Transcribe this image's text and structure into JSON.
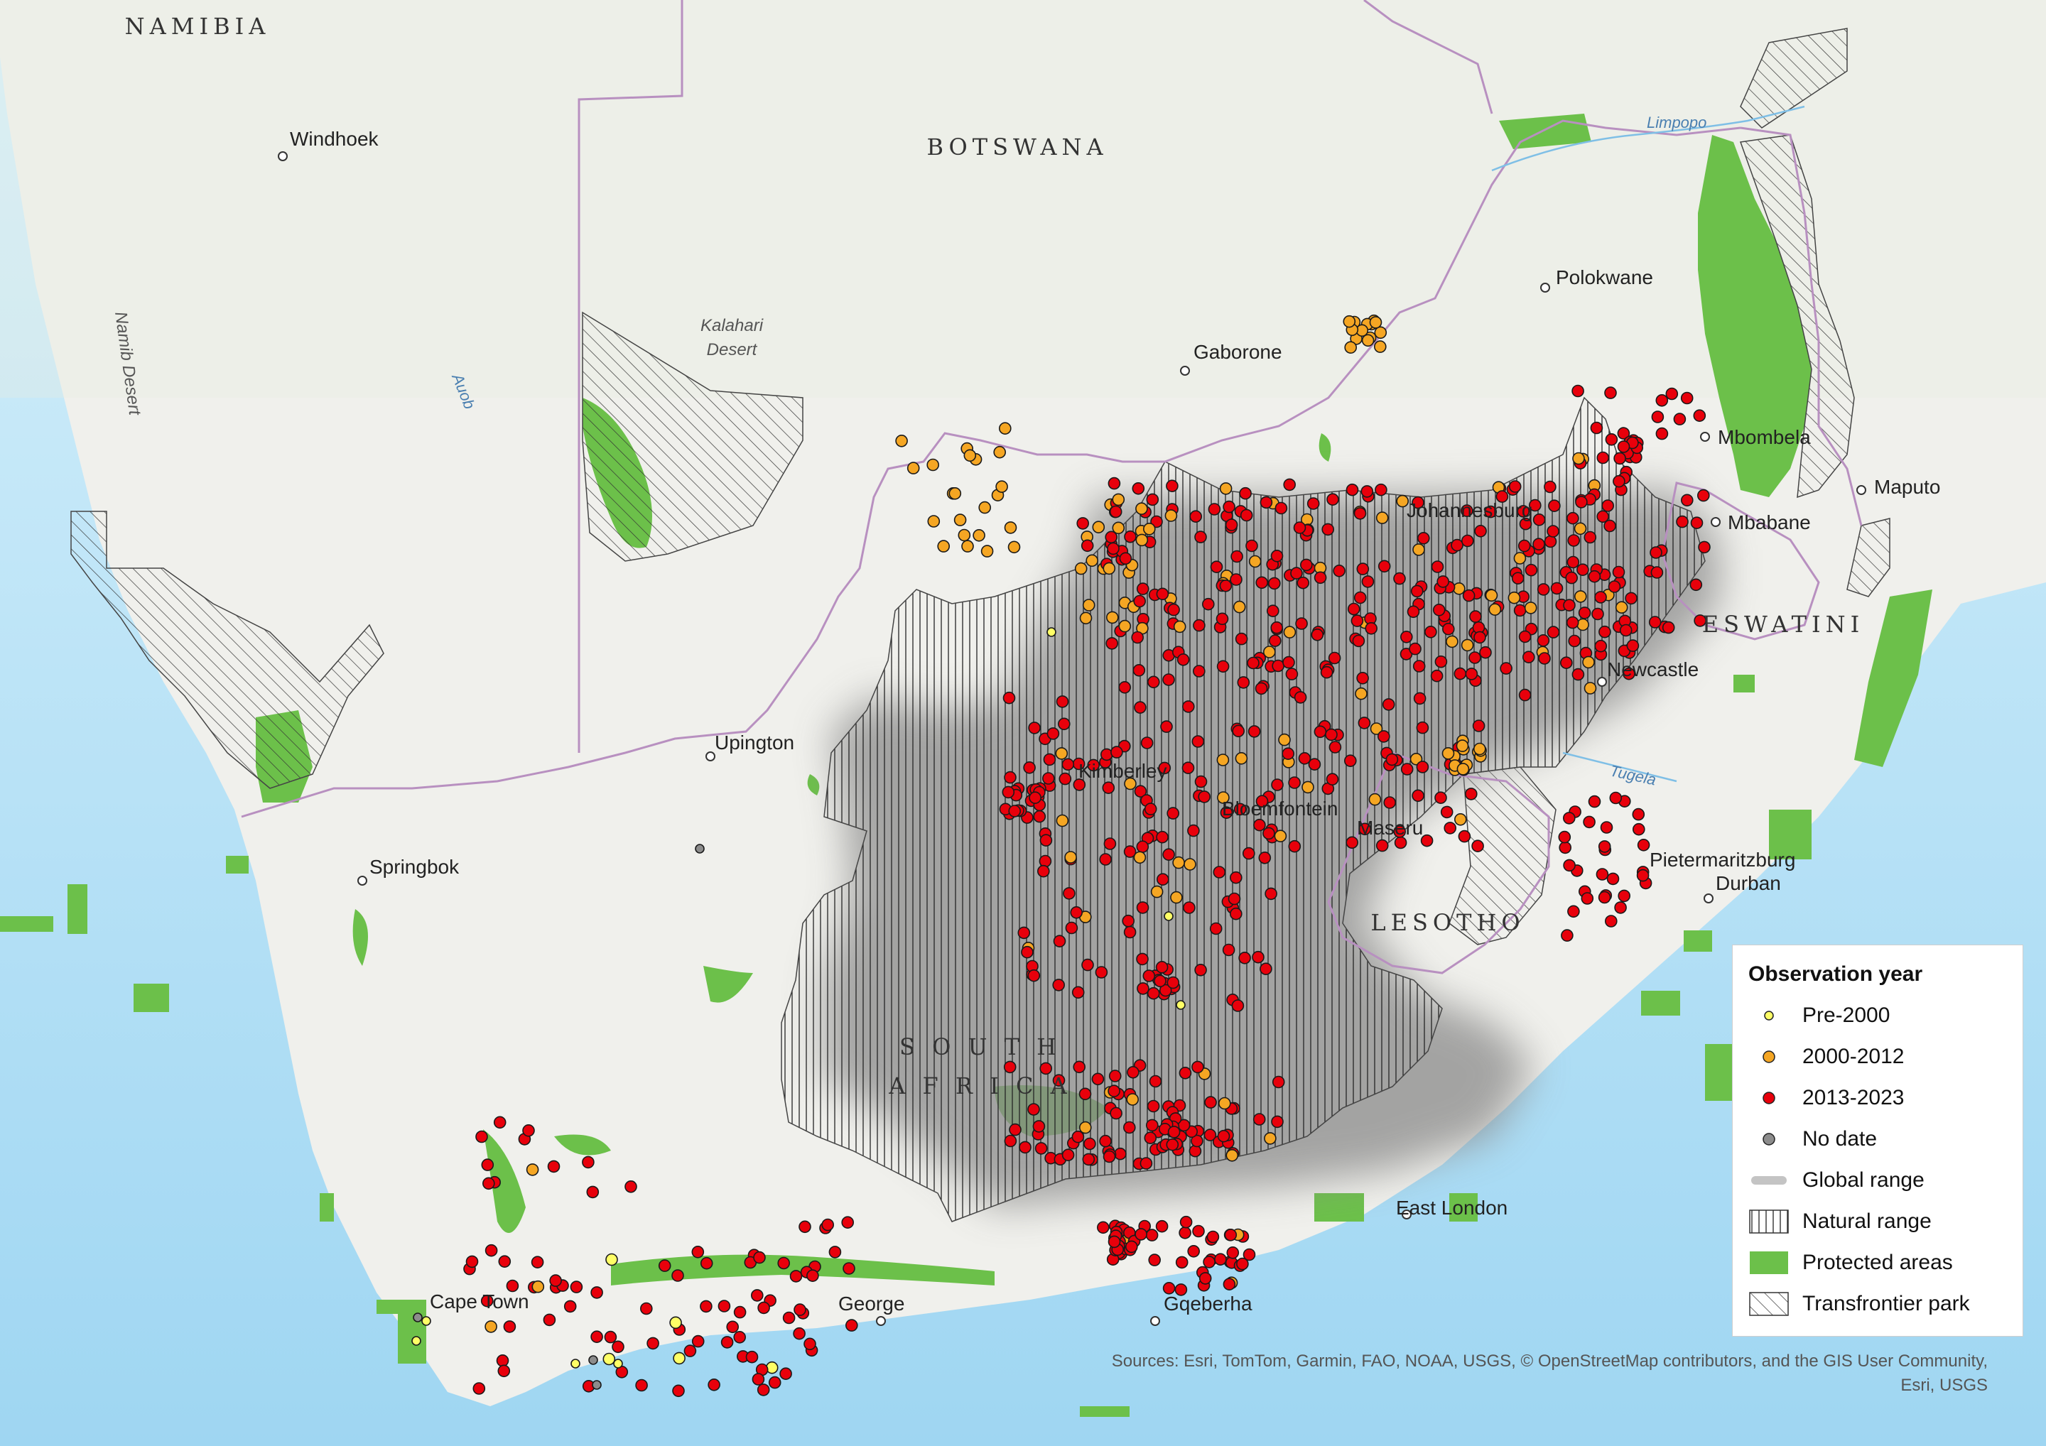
{
  "map": {
    "countries": {
      "namibia": "NAMIBIA",
      "botswana": "BOTSWANA",
      "lesotho": "LESOTHO",
      "eswatini": "ESWATINI",
      "south_africa_line1": "S O U T H",
      "south_africa_line2": "A F R I C A"
    },
    "cities": {
      "windhoek": "Windhoek",
      "gaborone": "Gaborone",
      "polokwane": "Polokwane",
      "mbombela": "Mbombela",
      "maputo": "Maputo",
      "mbabane": "Mbabane",
      "johannesburg": "Johannesburg",
      "newcastle": "Newcastle",
      "upington": "Upington",
      "kimberley": "Kimberley",
      "bloemfontein": "Bloemfontein",
      "maseru": "Maseru",
      "pietermaritzburg": "Pietermaritzburg",
      "durban": "Durban",
      "springbok": "Springbok",
      "east_london": "East London",
      "cape_town": "Cape Town",
      "george": "George",
      "gqeberha": "Gqeberha"
    },
    "features": {
      "kalahari_line1": "Kalahari",
      "kalahari_line2": "Desert",
      "namib_desert": "Namib Desert",
      "auob": "Auob",
      "limpopo": "Limpopo",
      "tugela": "Tugela"
    },
    "colors": {
      "ocean": "#bfe6f7",
      "land": "#f0f0ec",
      "protected_areas": "#6cc04a",
      "global_range": "#8a8a8a",
      "border": "#b890c0",
      "pre_2000": "#ffff66",
      "y2000_2012": "#f5a623",
      "y2013_2023": "#e8000b",
      "no_date": "#8c8c8c"
    }
  },
  "legend": {
    "title": "Observation year",
    "items": [
      {
        "label": "Pre-2000",
        "color": "#ffff66",
        "kind": "dot-small"
      },
      {
        "label": "2000-2012",
        "color": "#f5a623",
        "kind": "dot"
      },
      {
        "label": "2013-2023",
        "color": "#e8000b",
        "kind": "dot"
      },
      {
        "label": "No date",
        "color": "#8c8c8c",
        "kind": "dot"
      },
      {
        "label": "Global range",
        "color": "#8a8a8a",
        "kind": "blur-line"
      },
      {
        "label": "Natural range",
        "color": "#000000",
        "kind": "vertical-hatch"
      },
      {
        "label": "Protected areas",
        "color": "#6cc04a",
        "kind": "fill"
      },
      {
        "label": "Transfrontier park",
        "color": "#000000",
        "kind": "diagonal-hatch"
      }
    ]
  },
  "sources": {
    "line1": "Sources: Esri, TomTom, Garmin, FAO, NOAA, USGS, © OpenStreetMap contributors, and the GIS User Community,",
    "line2": "Esri, USGS"
  }
}
